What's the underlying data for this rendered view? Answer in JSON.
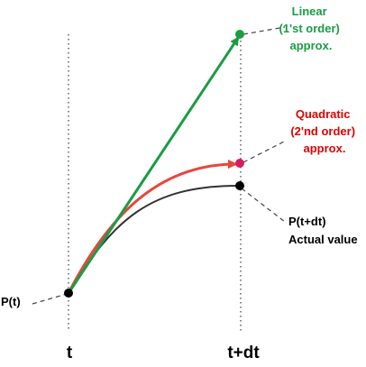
{
  "axis_labels": {
    "t": "t",
    "t_dt": "t+dt"
  },
  "point_labels": {
    "start": "P(t)"
  },
  "callouts": {
    "linear": [
      "Linear",
      "(1'st order)",
      "approx."
    ],
    "quadratic": [
      "Quadratic",
      "(2'nd order)",
      "approx."
    ],
    "actual": [
      "P(t+dt)",
      "Actual value"
    ]
  },
  "colors": {
    "linear": "#1a9c45",
    "quadratic": "#e8463c",
    "quadratic_text": "#e00000",
    "quadratic_point": "#d81b60",
    "actual": "#333333",
    "leader": "#444444",
    "text": "#000000"
  }
}
